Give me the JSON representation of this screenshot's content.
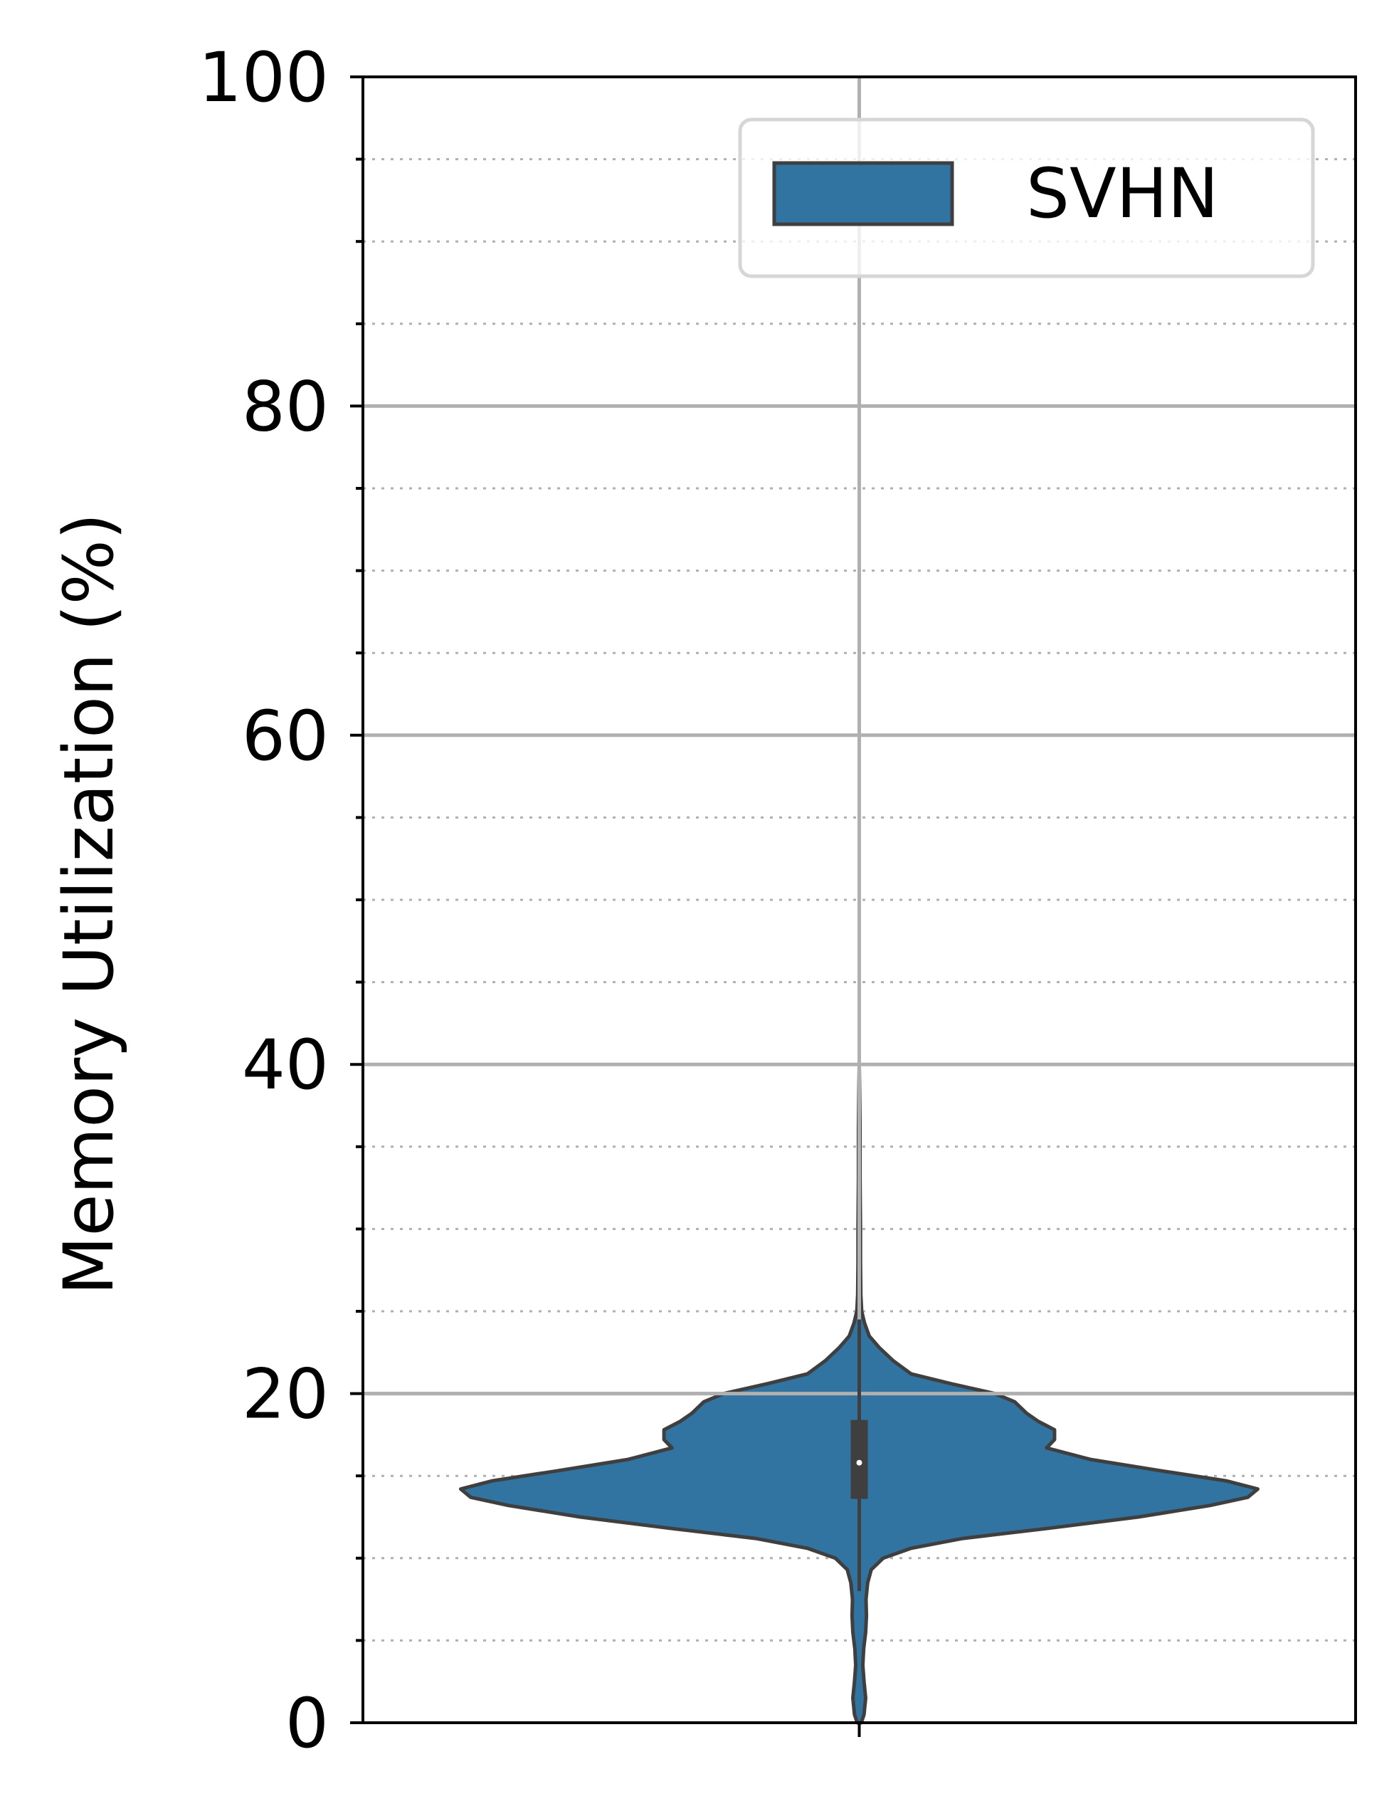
{
  "chart_data": {
    "type": "violin",
    "title": "",
    "xlabel": "",
    "ylabel": "Memory Utilization (%)",
    "ylim": [
      0,
      100
    ],
    "yticks": [
      0,
      20,
      40,
      60,
      80,
      100
    ],
    "yminor_step": 5,
    "grid": {
      "major": true,
      "minor": true,
      "x": true
    },
    "legend": {
      "position": "top-right",
      "entries": [
        "SVHN"
      ]
    },
    "colors": {
      "fill": "#3274a1",
      "edge": "#3f3f3f",
      "grid": "#b0b0b0"
    },
    "series": [
      {
        "name": "SVHN",
        "min": 0,
        "q1": 13.6,
        "median": 15.8,
        "q3": 18.4,
        "max": 40,
        "whisker_low": 8,
        "whisker_high": 24.5,
        "density": [
          [
            0.0,
            0.005
          ],
          [
            0.5,
            0.012
          ],
          [
            1.5,
            0.016
          ],
          [
            2.5,
            0.012
          ],
          [
            3.5,
            0.009
          ],
          [
            4.5,
            0.011
          ],
          [
            5.5,
            0.016
          ],
          [
            6.5,
            0.018
          ],
          [
            7.5,
            0.017
          ],
          [
            8.5,
            0.021
          ],
          [
            9.3,
            0.03
          ],
          [
            10.0,
            0.06
          ],
          [
            10.6,
            0.13
          ],
          [
            11.2,
            0.26
          ],
          [
            11.8,
            0.47
          ],
          [
            12.5,
            0.7
          ],
          [
            13.2,
            0.88
          ],
          [
            13.7,
            0.975
          ],
          [
            14.2,
            1.0
          ],
          [
            14.7,
            0.92
          ],
          [
            15.3,
            0.76
          ],
          [
            16.0,
            0.58
          ],
          [
            16.7,
            0.47
          ],
          [
            17.2,
            0.49
          ],
          [
            17.8,
            0.49
          ],
          [
            18.3,
            0.45
          ],
          [
            18.8,
            0.42
          ],
          [
            19.5,
            0.39
          ],
          [
            20.0,
            0.34
          ],
          [
            20.6,
            0.23
          ],
          [
            21.2,
            0.13
          ],
          [
            22.0,
            0.085
          ],
          [
            22.8,
            0.05
          ],
          [
            23.5,
            0.025
          ],
          [
            24.3,
            0.013
          ],
          [
            25.0,
            0.006
          ],
          [
            26.0,
            0.004
          ],
          [
            28.0,
            0.003
          ],
          [
            30.0,
            0.003
          ],
          [
            33.0,
            0.002
          ],
          [
            36.0,
            0.002
          ],
          [
            38.0,
            0.001
          ],
          [
            40.0,
            0.0
          ]
        ]
      }
    ]
  }
}
